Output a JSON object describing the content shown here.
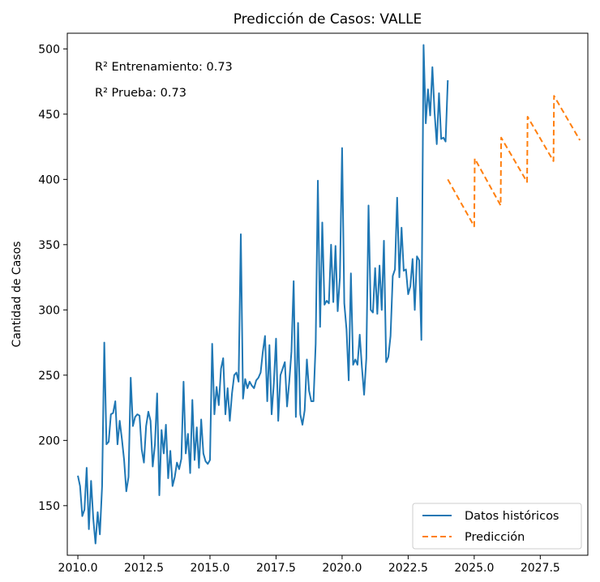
{
  "chart_data": {
    "type": "line",
    "title": "Predicción de Casos: VALLE",
    "xlabel": "",
    "ylabel": "Cantidad de Casos",
    "xlim": [
      2009.6,
      2029.3
    ],
    "ylim": [
      112,
      512
    ],
    "x_ticks": [
      2010.0,
      2012.5,
      2015.0,
      2017.5,
      2020.0,
      2022.5,
      2025.0,
      2027.5
    ],
    "x_tick_labels": [
      "2010.0",
      "2012.5",
      "2015.0",
      "2017.5",
      "2020.0",
      "2022.5",
      "2025.0",
      "2027.5"
    ],
    "y_ticks": [
      150,
      200,
      250,
      300,
      350,
      400,
      450,
      500
    ],
    "y_tick_labels": [
      "150",
      "200",
      "250",
      "300",
      "350",
      "400",
      "450",
      "500"
    ],
    "grid": false,
    "legend_position": "lower-right",
    "annotations": [
      "R² Entrenamiento: 0.73",
      "R² Prueba: 0.73"
    ],
    "series": [
      {
        "name": "Datos históricos",
        "style": "solid",
        "color": "#1f77b4",
        "x": [
          2010.0,
          2010.083,
          2010.167,
          2010.25,
          2010.333,
          2010.417,
          2010.5,
          2010.583,
          2010.667,
          2010.75,
          2010.833,
          2010.917,
          2011.0,
          2011.083,
          2011.167,
          2011.25,
          2011.333,
          2011.417,
          2011.5,
          2011.583,
          2011.667,
          2011.75,
          2011.833,
          2011.917,
          2012.0,
          2012.083,
          2012.167,
          2012.25,
          2012.333,
          2012.417,
          2012.5,
          2012.583,
          2012.667,
          2012.75,
          2012.833,
          2012.917,
          2013.0,
          2013.083,
          2013.167,
          2013.25,
          2013.333,
          2013.417,
          2013.5,
          2013.583,
          2013.667,
          2013.75,
          2013.833,
          2013.917,
          2014.0,
          2014.083,
          2014.167,
          2014.25,
          2014.333,
          2014.417,
          2014.5,
          2014.583,
          2014.667,
          2014.75,
          2014.833,
          2014.917,
          2015.0,
          2015.083,
          2015.167,
          2015.25,
          2015.333,
          2015.417,
          2015.5,
          2015.583,
          2015.667,
          2015.75,
          2015.833,
          2015.917,
          2016.0,
          2016.083,
          2016.167,
          2016.25,
          2016.333,
          2016.417,
          2016.5,
          2016.583,
          2016.667,
          2016.75,
          2016.833,
          2016.917,
          2017.0,
          2017.083,
          2017.167,
          2017.25,
          2017.333,
          2017.417,
          2017.5,
          2017.583,
          2017.667,
          2017.75,
          2017.833,
          2017.917,
          2018.0,
          2018.083,
          2018.167,
          2018.25,
          2018.333,
          2018.417,
          2018.5,
          2018.583,
          2018.667,
          2018.75,
          2018.833,
          2018.917,
          2019.0,
          2019.083,
          2019.167,
          2019.25,
          2019.333,
          2019.417,
          2019.5,
          2019.583,
          2019.667,
          2019.75,
          2019.833,
          2019.917,
          2020.0,
          2020.083,
          2020.167,
          2020.25,
          2020.333,
          2020.417,
          2020.5,
          2020.583,
          2020.667,
          2020.75,
          2020.833,
          2020.917,
          2021.0,
          2021.083,
          2021.167,
          2021.25,
          2021.333,
          2021.417,
          2021.5,
          2021.583,
          2021.667,
          2021.75,
          2021.833,
          2021.917,
          2022.0,
          2022.083,
          2022.167,
          2022.25,
          2022.333,
          2022.417,
          2022.5,
          2022.583,
          2022.667,
          2022.75,
          2022.833,
          2022.917,
          2023.0,
          2023.083,
          2023.167,
          2023.25,
          2023.333,
          2023.417,
          2023.5,
          2023.583,
          2023.667,
          2023.75,
          2023.833,
          2023.917,
          2024.0
        ],
        "values": [
          173,
          165,
          142,
          147,
          179,
          132,
          169,
          140,
          121,
          145,
          128,
          165,
          275,
          197,
          199,
          220,
          221,
          230,
          197,
          215,
          201,
          185,
          161,
          172,
          248,
          211,
          218,
          220,
          219,
          193,
          183,
          211,
          222,
          215,
          180,
          197,
          236,
          158,
          208,
          190,
          212,
          171,
          192,
          165,
          172,
          183,
          178,
          186,
          245,
          190,
          205,
          175,
          231,
          185,
          210,
          179,
          216,
          190,
          184,
          182,
          185,
          274,
          220,
          241,
          227,
          255,
          263,
          220,
          240,
          215,
          236,
          250,
          252,
          245,
          358,
          232,
          247,
          240,
          245,
          242,
          240,
          246,
          248,
          252,
          268,
          280,
          230,
          273,
          220,
          244,
          278,
          215,
          250,
          255,
          260,
          226,
          245,
          268,
          322,
          218,
          290,
          220,
          212,
          223,
          262,
          238,
          230,
          230,
          274,
          399,
          287,
          367,
          304,
          307,
          305,
          350,
          306,
          349,
          299,
          325,
          424,
          305,
          285,
          246,
          328,
          258,
          262,
          258,
          281,
          256,
          235,
          263,
          380,
          300,
          298,
          332,
          297,
          334,
          300,
          353,
          260,
          264,
          280,
          326,
          331,
          386,
          325,
          363,
          330,
          331,
          312,
          318,
          339,
          300,
          341,
          338,
          277,
          503,
          443,
          469,
          449,
          486,
          451,
          427,
          466,
          431,
          432,
          429,
          476
        ]
      },
      {
        "name": "Predicción",
        "style": "dashed",
        "color": "#ff7f0e",
        "x": [
          2024.0,
          2025.0,
          2025.02,
          2026.0,
          2026.02,
          2027.0,
          2027.02,
          2028.0,
          2028.02,
          2029.0
        ],
        "values": [
          400,
          364,
          416,
          380,
          432,
          398,
          448,
          414,
          464,
          430
        ]
      }
    ]
  }
}
